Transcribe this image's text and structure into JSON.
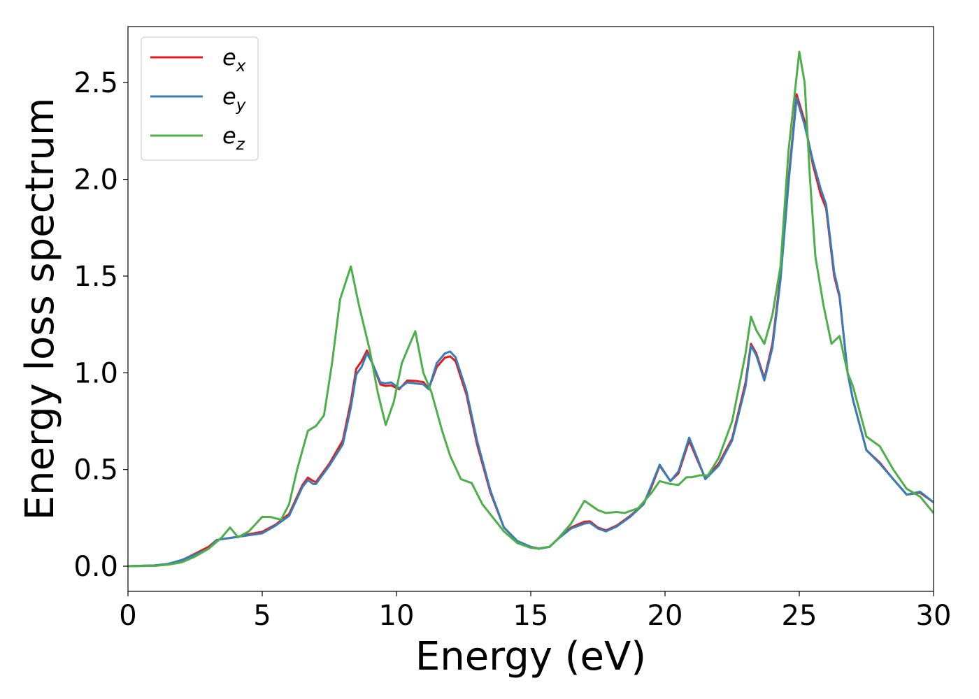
{
  "chart_data": {
    "type": "line",
    "xlabel": "Energy (eV)",
    "ylabel": "Energy loss spectrum",
    "xlim": [
      0,
      30
    ],
    "ylim": [
      -0.13,
      2.79
    ],
    "xticks": [
      0,
      5,
      10,
      15,
      20,
      25,
      30
    ],
    "yticks": [
      0.0,
      0.5,
      1.0,
      1.5,
      2.0,
      2.5
    ],
    "xtick_labels": [
      "0",
      "5",
      "10",
      "15",
      "20",
      "25",
      "30"
    ],
    "ytick_labels": [
      "0.0",
      "0.5",
      "1.0",
      "1.5",
      "2.0",
      "2.5"
    ],
    "grid": false,
    "legend": "top-left",
    "series": [
      {
        "name": "e_x",
        "label_base": "e",
        "label_sub": "x",
        "color": "#e41a1c",
        "points": [
          [
            0,
            0
          ],
          [
            1,
            0.004
          ],
          [
            1.5,
            0.012
          ],
          [
            2,
            0.03
          ],
          [
            2.5,
            0.065
          ],
          [
            3,
            0.1
          ],
          [
            3.3,
            0.135
          ],
          [
            3.5,
            0.14
          ],
          [
            4,
            0.15
          ],
          [
            4.5,
            0.165
          ],
          [
            5,
            0.178
          ],
          [
            5.5,
            0.215
          ],
          [
            6,
            0.27
          ],
          [
            6.3,
            0.36
          ],
          [
            6.5,
            0.42
          ],
          [
            6.7,
            0.458
          ],
          [
            6.9,
            0.44
          ],
          [
            7,
            0.435
          ],
          [
            7.5,
            0.53
          ],
          [
            8,
            0.65
          ],
          [
            8.3,
            0.85
          ],
          [
            8.5,
            1.02
          ],
          [
            8.7,
            1.06
          ],
          [
            8.9,
            1.115
          ],
          [
            9.1,
            1.05
          ],
          [
            9.4,
            0.94
          ],
          [
            9.6,
            0.932
          ],
          [
            9.8,
            0.935
          ],
          [
            10.1,
            0.915
          ],
          [
            10.4,
            0.96
          ],
          [
            10.7,
            0.958
          ],
          [
            11,
            0.952
          ],
          [
            11.2,
            0.918
          ],
          [
            11.5,
            1.03
          ],
          [
            11.8,
            1.078
          ],
          [
            12,
            1.085
          ],
          [
            12.2,
            1.06
          ],
          [
            12.6,
            0.89
          ],
          [
            13,
            0.63
          ],
          [
            13.5,
            0.38
          ],
          [
            14,
            0.2
          ],
          [
            14.5,
            0.13
          ],
          [
            15,
            0.1
          ],
          [
            15.3,
            0.092
          ],
          [
            15.7,
            0.1
          ],
          [
            16,
            0.14
          ],
          [
            16.5,
            0.2
          ],
          [
            17,
            0.23
          ],
          [
            17.2,
            0.232
          ],
          [
            17.5,
            0.2
          ],
          [
            17.8,
            0.185
          ],
          [
            18.2,
            0.21
          ],
          [
            18.7,
            0.26
          ],
          [
            19.2,
            0.32
          ],
          [
            19.5,
            0.41
          ],
          [
            19.8,
            0.52
          ],
          [
            20.2,
            0.44
          ],
          [
            20.5,
            0.48
          ],
          [
            20.9,
            0.65
          ],
          [
            21.2,
            0.55
          ],
          [
            21.5,
            0.455
          ],
          [
            22,
            0.53
          ],
          [
            22.5,
            0.66
          ],
          [
            23,
            0.95
          ],
          [
            23.2,
            1.15
          ],
          [
            23.4,
            1.1
          ],
          [
            23.7,
            0.97
          ],
          [
            24,
            1.15
          ],
          [
            24.3,
            1.5
          ],
          [
            24.6,
            2.0
          ],
          [
            24.9,
            2.44
          ],
          [
            25.2,
            2.3
          ],
          [
            25.5,
            2.08
          ],
          [
            25.8,
            1.92
          ],
          [
            26,
            1.85
          ],
          [
            26.3,
            1.5
          ],
          [
            26.5,
            1.39
          ],
          [
            26.8,
            1.0
          ],
          [
            27,
            0.86
          ],
          [
            27.5,
            0.6
          ],
          [
            28,
            0.535
          ],
          [
            28.5,
            0.45
          ],
          [
            29,
            0.37
          ],
          [
            29.5,
            0.38
          ],
          [
            30,
            0.33
          ]
        ]
      },
      {
        "name": "e_y",
        "label_base": "e",
        "label_sub": "y",
        "color": "#377eb8",
        "points": [
          [
            0,
            0
          ],
          [
            1,
            0.004
          ],
          [
            1.5,
            0.012
          ],
          [
            2,
            0.032
          ],
          [
            2.5,
            0.06
          ],
          [
            3,
            0.09
          ],
          [
            3.3,
            0.135
          ],
          [
            3.5,
            0.14
          ],
          [
            4,
            0.15
          ],
          [
            4.5,
            0.16
          ],
          [
            5,
            0.17
          ],
          [
            5.5,
            0.21
          ],
          [
            6,
            0.26
          ],
          [
            6.3,
            0.35
          ],
          [
            6.5,
            0.41
          ],
          [
            6.7,
            0.445
          ],
          [
            6.9,
            0.425
          ],
          [
            7,
            0.425
          ],
          [
            7.5,
            0.52
          ],
          [
            8,
            0.63
          ],
          [
            8.3,
            0.82
          ],
          [
            8.5,
            0.99
          ],
          [
            8.7,
            1.03
          ],
          [
            8.9,
            1.1
          ],
          [
            9.1,
            1.05
          ],
          [
            9.4,
            0.95
          ],
          [
            9.6,
            0.945
          ],
          [
            9.8,
            0.95
          ],
          [
            10.1,
            0.92
          ],
          [
            10.4,
            0.95
          ],
          [
            10.7,
            0.945
          ],
          [
            11,
            0.94
          ],
          [
            11.2,
            0.915
          ],
          [
            11.5,
            1.05
          ],
          [
            11.8,
            1.1
          ],
          [
            12,
            1.11
          ],
          [
            12.2,
            1.08
          ],
          [
            12.6,
            0.91
          ],
          [
            13,
            0.65
          ],
          [
            13.5,
            0.39
          ],
          [
            14,
            0.2
          ],
          [
            14.5,
            0.13
          ],
          [
            15,
            0.1
          ],
          [
            15.3,
            0.09
          ],
          [
            15.7,
            0.1
          ],
          [
            16,
            0.14
          ],
          [
            16.5,
            0.195
          ],
          [
            17,
            0.22
          ],
          [
            17.2,
            0.225
          ],
          [
            17.5,
            0.195
          ],
          [
            17.8,
            0.18
          ],
          [
            18.2,
            0.205
          ],
          [
            18.7,
            0.255
          ],
          [
            19.2,
            0.32
          ],
          [
            19.5,
            0.42
          ],
          [
            19.8,
            0.525
          ],
          [
            20.2,
            0.44
          ],
          [
            20.5,
            0.49
          ],
          [
            20.9,
            0.665
          ],
          [
            21.2,
            0.56
          ],
          [
            21.5,
            0.45
          ],
          [
            22,
            0.52
          ],
          [
            22.5,
            0.65
          ],
          [
            23,
            0.93
          ],
          [
            23.2,
            1.14
          ],
          [
            23.4,
            1.09
          ],
          [
            23.7,
            0.96
          ],
          [
            24,
            1.13
          ],
          [
            24.3,
            1.48
          ],
          [
            24.6,
            1.98
          ],
          [
            24.9,
            2.42
          ],
          [
            25.2,
            2.28
          ],
          [
            25.5,
            2.1
          ],
          [
            25.8,
            1.95
          ],
          [
            26,
            1.87
          ],
          [
            26.3,
            1.52
          ],
          [
            26.5,
            1.4
          ],
          [
            26.8,
            1.0
          ],
          [
            27,
            0.86
          ],
          [
            27.5,
            0.6
          ],
          [
            28,
            0.53
          ],
          [
            28.5,
            0.45
          ],
          [
            29,
            0.37
          ],
          [
            29.5,
            0.385
          ],
          [
            30,
            0.33
          ]
        ]
      },
      {
        "name": "e_z",
        "label_base": "e",
        "label_sub": "z",
        "color": "#4daf4a",
        "points": [
          [
            0,
            0
          ],
          [
            1,
            0.002
          ],
          [
            1.5,
            0.008
          ],
          [
            2,
            0.02
          ],
          [
            2.5,
            0.05
          ],
          [
            3,
            0.09
          ],
          [
            3.5,
            0.15
          ],
          [
            3.8,
            0.2
          ],
          [
            4.1,
            0.15
          ],
          [
            4.5,
            0.18
          ],
          [
            5,
            0.255
          ],
          [
            5.3,
            0.255
          ],
          [
            5.7,
            0.24
          ],
          [
            6,
            0.32
          ],
          [
            6.3,
            0.5
          ],
          [
            6.7,
            0.7
          ],
          [
            7,
            0.725
          ],
          [
            7.3,
            0.78
          ],
          [
            7.6,
            1.05
          ],
          [
            7.9,
            1.38
          ],
          [
            8.3,
            1.55
          ],
          [
            8.6,
            1.35
          ],
          [
            9,
            1.12
          ],
          [
            9.3,
            0.9
          ],
          [
            9.6,
            0.73
          ],
          [
            9.9,
            0.85
          ],
          [
            10.2,
            1.05
          ],
          [
            10.5,
            1.15
          ],
          [
            10.7,
            1.215
          ],
          [
            11,
            1.0
          ],
          [
            11.3,
            0.9
          ],
          [
            11.7,
            0.7
          ],
          [
            12,
            0.57
          ],
          [
            12.4,
            0.45
          ],
          [
            12.8,
            0.43
          ],
          [
            13.2,
            0.32
          ],
          [
            13.6,
            0.25
          ],
          [
            14,
            0.18
          ],
          [
            14.5,
            0.12
          ],
          [
            15,
            0.095
          ],
          [
            15.3,
            0.092
          ],
          [
            15.7,
            0.1
          ],
          [
            16,
            0.14
          ],
          [
            16.5,
            0.22
          ],
          [
            17,
            0.338
          ],
          [
            17.5,
            0.29
          ],
          [
            17.8,
            0.275
          ],
          [
            18.2,
            0.28
          ],
          [
            18.5,
            0.275
          ],
          [
            19,
            0.3
          ],
          [
            19.5,
            0.38
          ],
          [
            19.8,
            0.44
          ],
          [
            20.2,
            0.425
          ],
          [
            20.5,
            0.42
          ],
          [
            20.8,
            0.46
          ],
          [
            21,
            0.46
          ],
          [
            21.3,
            0.47
          ],
          [
            21.6,
            0.47
          ],
          [
            22,
            0.56
          ],
          [
            22.5,
            0.75
          ],
          [
            23,
            1.1
          ],
          [
            23.2,
            1.29
          ],
          [
            23.4,
            1.22
          ],
          [
            23.7,
            1.15
          ],
          [
            24,
            1.3
          ],
          [
            24.3,
            1.55
          ],
          [
            24.6,
            2.15
          ],
          [
            25,
            2.66
          ],
          [
            25.2,
            2.5
          ],
          [
            25.4,
            2.0
          ],
          [
            25.6,
            1.6
          ],
          [
            25.9,
            1.35
          ],
          [
            26.2,
            1.15
          ],
          [
            26.5,
            1.19
          ],
          [
            26.8,
            1.0
          ],
          [
            27,
            0.93
          ],
          [
            27.5,
            0.67
          ],
          [
            28,
            0.62
          ],
          [
            28.5,
            0.5
          ],
          [
            29,
            0.4
          ],
          [
            29.5,
            0.36
          ],
          [
            30,
            0.275
          ]
        ]
      }
    ]
  }
}
